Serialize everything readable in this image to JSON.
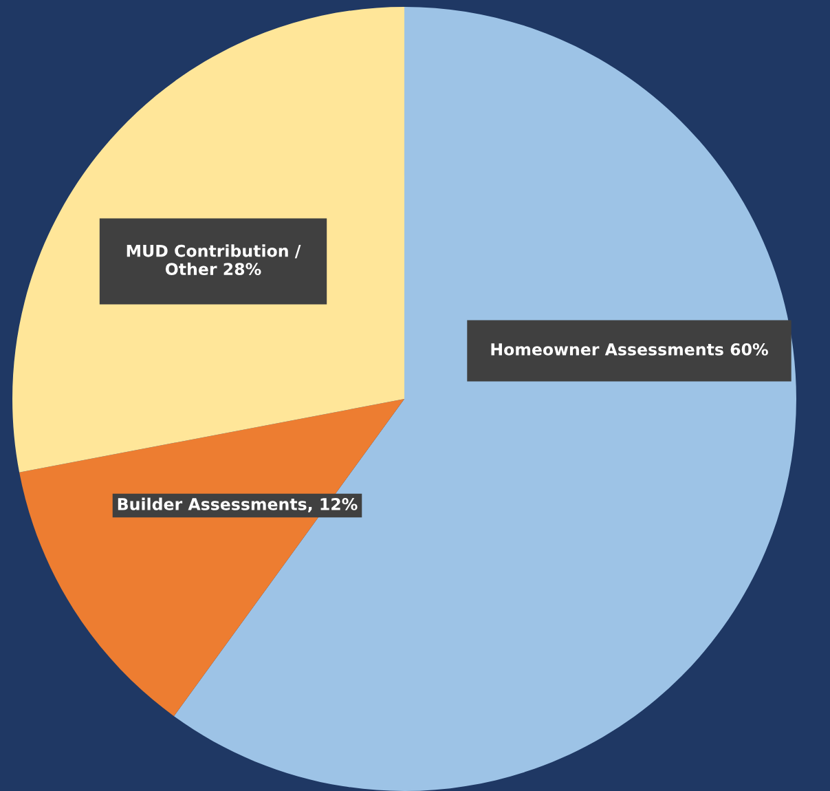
{
  "chart_data": {
    "type": "pie",
    "categories": [
      "Homeowner Assessments",
      "Builder Assessments",
      "MUD Contribution /\nOther"
    ],
    "values": [
      60,
      12,
      28
    ],
    "value_labels": [
      "60%",
      "12%",
      "28%"
    ],
    "colors": [
      "#9dc3e6",
      "#ed7d31",
      "#ffe699"
    ],
    "legend": false
  }
}
